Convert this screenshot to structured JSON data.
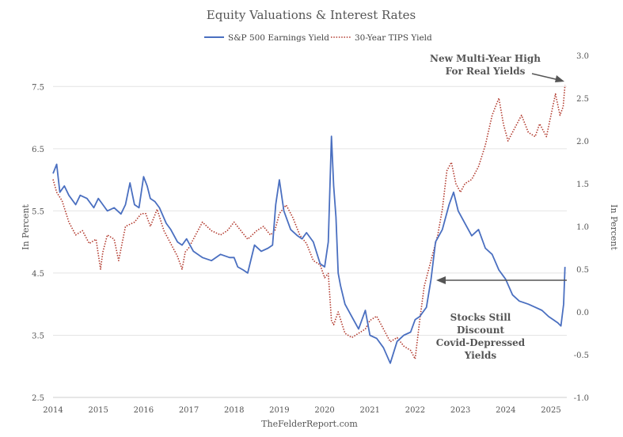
{
  "chart_data": {
    "type": "line",
    "title": "Equity Valuations & Interest Rates",
    "source": "TheFelderReport.com",
    "y_left_label": "In Percent",
    "y_right_label": "In Percent",
    "y_left_range": [
      2.5,
      8.0
    ],
    "y_right_range": [
      -1.0,
      3.0
    ],
    "y_left_ticks": [
      "7.5",
      "6.5",
      "5.5",
      "4.5",
      "3.5",
      "2.5"
    ],
    "y_left_tick_values": [
      7.5,
      6.5,
      5.5,
      4.5,
      3.5,
      2.5
    ],
    "y_right_ticks": [
      "3.0",
      "2.5",
      "2.0",
      "1.5",
      "1.0",
      "0.5",
      "0.0",
      "-0.5",
      "-1.0"
    ],
    "y_right_tick_values": [
      3.0,
      2.5,
      2.0,
      1.5,
      1.0,
      0.5,
      0.0,
      -0.5,
      -1.0
    ],
    "x_range": [
      2014,
      2025.35
    ],
    "x_ticks": [
      "2014",
      "2015",
      "2016",
      "2017",
      "2018",
      "2019",
      "2020",
      "2021",
      "2022",
      "2023",
      "2024",
      "2025"
    ],
    "x_tick_values": [
      2014,
      2015,
      2016,
      2017,
      2018,
      2019,
      2020,
      2021,
      2022,
      2023,
      2024,
      2025
    ],
    "grid": "horizontal",
    "legend_position": "top-center",
    "series": [
      {
        "name": "S&P 500 Earnings Yield",
        "axis": "left",
        "color": "#4a6fc0",
        "style": "solid",
        "x": [
          2014.0,
          2014.08,
          2014.15,
          2014.25,
          2014.35,
          2014.5,
          2014.6,
          2014.75,
          2014.9,
          2015.0,
          2015.1,
          2015.2,
          2015.35,
          2015.5,
          2015.6,
          2015.7,
          2015.8,
          2015.9,
          2016.0,
          2016.08,
          2016.15,
          2016.25,
          2016.35,
          2016.5,
          2016.6,
          2016.75,
          2016.85,
          2016.95,
          2017.1,
          2017.3,
          2017.5,
          2017.7,
          2017.9,
          2018.0,
          2018.08,
          2018.2,
          2018.3,
          2018.45,
          2018.6,
          2018.75,
          2018.85,
          2018.92,
          2019.0,
          2019.1,
          2019.25,
          2019.4,
          2019.5,
          2019.6,
          2019.75,
          2019.9,
          2020.0,
          2020.08,
          2020.15,
          2020.2,
          2020.25,
          2020.3,
          2020.35,
          2020.45,
          2020.6,
          2020.75,
          2020.9,
          2021.0,
          2021.15,
          2021.3,
          2021.45,
          2021.6,
          2021.75,
          2021.9,
          2022.0,
          2022.1,
          2022.25,
          2022.35,
          2022.45,
          2022.6,
          2022.75,
          2022.85,
          2022.95,
          2023.1,
          2023.25,
          2023.4,
          2023.55,
          2023.7,
          2023.85,
          2024.0,
          2024.15,
          2024.3,
          2024.5,
          2024.65,
          2024.8,
          2024.95,
          2025.05,
          2025.15,
          2025.22,
          2025.28,
          2025.31
        ],
        "values": [
          6.1,
          6.25,
          5.8,
          5.9,
          5.75,
          5.6,
          5.75,
          5.7,
          5.55,
          5.7,
          5.6,
          5.5,
          5.55,
          5.45,
          5.6,
          5.95,
          5.6,
          5.55,
          6.05,
          5.9,
          5.7,
          5.65,
          5.55,
          5.3,
          5.2,
          5.0,
          4.95,
          5.05,
          4.85,
          4.75,
          4.7,
          4.8,
          4.75,
          4.75,
          4.6,
          4.55,
          4.5,
          4.95,
          4.85,
          4.9,
          4.95,
          5.6,
          6.0,
          5.5,
          5.2,
          5.1,
          5.05,
          5.15,
          5.0,
          4.65,
          4.6,
          5.0,
          6.7,
          5.9,
          5.4,
          4.5,
          4.3,
          4.0,
          3.8,
          3.6,
          3.9,
          3.5,
          3.45,
          3.3,
          3.05,
          3.4,
          3.5,
          3.55,
          3.75,
          3.8,
          3.95,
          4.4,
          5.0,
          5.2,
          5.6,
          5.8,
          5.5,
          5.3,
          5.1,
          5.2,
          4.9,
          4.8,
          4.55,
          4.4,
          4.15,
          4.05,
          4.0,
          3.95,
          3.9,
          3.8,
          3.75,
          3.7,
          3.65,
          4.0,
          4.6
        ]
      },
      {
        "name": "30-Year TIPS Yield",
        "axis": "right",
        "color": "#b23a2e",
        "style": "dotted",
        "x": [
          2014.0,
          2014.08,
          2014.2,
          2014.35,
          2014.5,
          2014.65,
          2014.8,
          2014.95,
          2015.05,
          2015.1,
          2015.2,
          2015.35,
          2015.45,
          2015.6,
          2015.8,
          2015.95,
          2016.05,
          2016.15,
          2016.3,
          2016.45,
          2016.55,
          2016.65,
          2016.75,
          2016.85,
          2016.92,
          2017.0,
          2017.15,
          2017.3,
          2017.5,
          2017.7,
          2017.85,
          2018.0,
          2018.15,
          2018.3,
          2018.5,
          2018.65,
          2018.8,
          2018.9,
          2019.0,
          2019.15,
          2019.3,
          2019.45,
          2019.6,
          2019.75,
          2019.9,
          2020.0,
          2020.08,
          2020.15,
          2020.2,
          2020.3,
          2020.45,
          2020.6,
          2020.75,
          2020.9,
          2021.0,
          2021.15,
          2021.3,
          2021.45,
          2021.6,
          2021.75,
          2021.9,
          2022.0,
          2022.1,
          2022.2,
          2022.3,
          2022.4,
          2022.5,
          2022.6,
          2022.7,
          2022.8,
          2022.9,
          2023.0,
          2023.1,
          2023.25,
          2023.4,
          2023.55,
          2023.7,
          2023.85,
          2023.95,
          2024.05,
          2024.2,
          2024.35,
          2024.5,
          2024.65,
          2024.75,
          2024.9,
          2025.0,
          2025.1,
          2025.2,
          2025.27,
          2025.31
        ],
        "values": [
          1.55,
          1.4,
          1.3,
          1.05,
          0.9,
          0.95,
          0.8,
          0.85,
          0.5,
          0.7,
          0.9,
          0.85,
          0.6,
          1.0,
          1.05,
          1.15,
          1.15,
          1.0,
          1.2,
          0.95,
          0.85,
          0.75,
          0.65,
          0.5,
          0.7,
          0.75,
          0.9,
          1.05,
          0.95,
          0.9,
          0.95,
          1.05,
          0.95,
          0.85,
          0.95,
          1.0,
          0.9,
          0.95,
          1.15,
          1.25,
          1.1,
          0.9,
          0.8,
          0.6,
          0.55,
          0.4,
          0.45,
          -0.1,
          -0.15,
          0.0,
          -0.25,
          -0.3,
          -0.25,
          -0.2,
          -0.1,
          -0.05,
          -0.2,
          -0.35,
          -0.3,
          -0.4,
          -0.45,
          -0.55,
          -0.1,
          0.3,
          0.5,
          0.7,
          0.9,
          1.2,
          1.65,
          1.75,
          1.5,
          1.4,
          1.5,
          1.55,
          1.7,
          1.95,
          2.3,
          2.5,
          2.2,
          2.0,
          2.15,
          2.3,
          2.1,
          2.05,
          2.2,
          2.05,
          2.3,
          2.55,
          2.3,
          2.4,
          2.65
        ]
      }
    ],
    "annotations": [
      {
        "id": "real-yields",
        "lines": [
          "New Multi-Year High",
          "For Real Yields"
        ]
      },
      {
        "id": "covid-yields",
        "lines": [
          "Stocks Still",
          "Discount",
          "Covid-Depressed",
          "Yields"
        ]
      }
    ]
  }
}
